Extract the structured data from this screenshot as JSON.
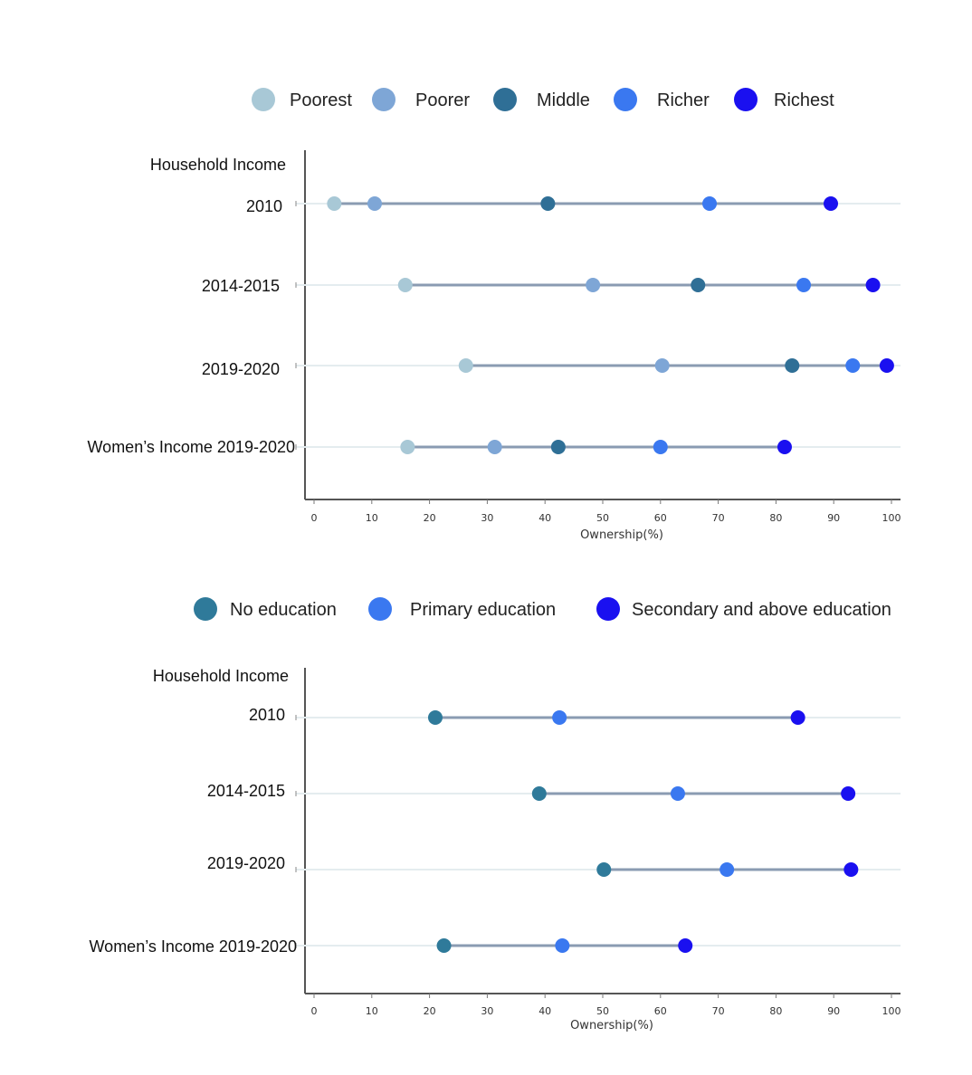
{
  "chart_data": [
    {
      "type": "dumbbell",
      "header_label": "Household Income",
      "xlabel": "Ownership(%)",
      "xlim": [
        0,
        100
      ],
      "xticks": [
        0,
        10,
        20,
        30,
        40,
        50,
        60,
        70,
        80,
        90,
        100
      ],
      "legend_position": "top",
      "categories": [
        "2010",
        "2014-2015",
        "2019-2020",
        "Women’s Income 2019-2020"
      ],
      "series": [
        {
          "name": "Poorest",
          "color": "#a8c8d6",
          "values": [
            3.5,
            15.8,
            26.3,
            16.2
          ]
        },
        {
          "name": "Poorer",
          "color": "#7ea6d6",
          "values": [
            10.5,
            48.3,
            60.3,
            31.3
          ]
        },
        {
          "name": "Middle",
          "color": "#2f6f96",
          "values": [
            40.5,
            66.5,
            82.8,
            42.3
          ]
        },
        {
          "name": "Richer",
          "color": "#3a78f0",
          "values": [
            68.5,
            84.8,
            93.3,
            60
          ]
        },
        {
          "name": "Richest",
          "color": "#1a10f0",
          "values": [
            89.5,
            96.8,
            99.2,
            81.5
          ]
        }
      ]
    },
    {
      "type": "dumbbell",
      "header_label": "Household Income",
      "xlabel": "Ownership(%)",
      "xlim": [
        0,
        100
      ],
      "xticks": [
        0,
        10,
        20,
        30,
        40,
        50,
        60,
        70,
        80,
        90,
        100
      ],
      "legend_position": "top",
      "categories": [
        "2010",
        "2014-2015",
        "2019-2020",
        "Women’s Income 2019-2020"
      ],
      "series": [
        {
          "name": "No education",
          "color": "#2f7a9a",
          "values": [
            21,
            39,
            50.2,
            22.5
          ]
        },
        {
          "name": "Primary education",
          "color": "#3a78f0",
          "values": [
            42.5,
            63,
            71.5,
            43
          ]
        },
        {
          "name": "Secondary and above education",
          "color": "#1a10f0",
          "values": [
            83.8,
            92.5,
            93,
            64.3
          ]
        }
      ]
    }
  ]
}
